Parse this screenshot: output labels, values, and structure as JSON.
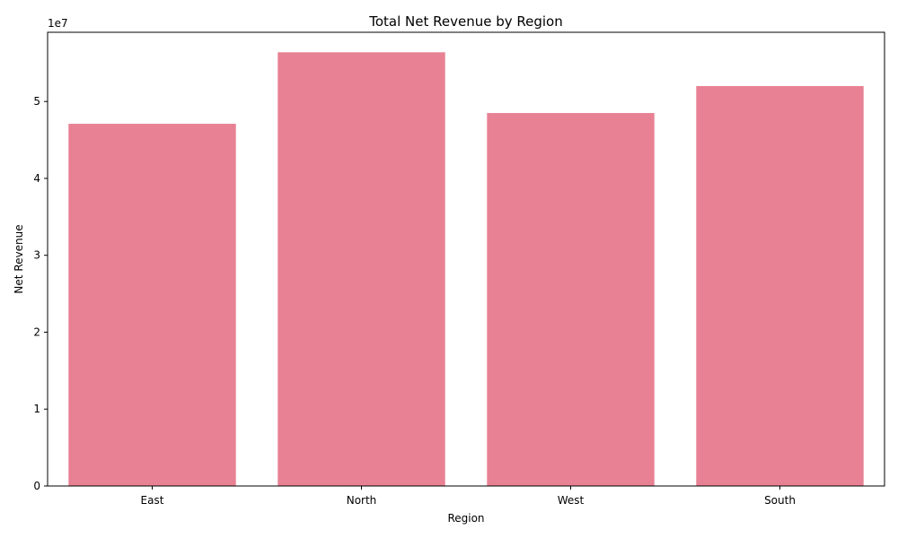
{
  "chart_data": {
    "type": "bar",
    "title": "Total Net Revenue by Region",
    "xlabel": "Region",
    "ylabel": "Net Revenue",
    "categories": [
      "East",
      "North",
      "West",
      "South"
    ],
    "values": [
      47100000,
      56400000,
      48500000,
      52000000
    ],
    "ylim": [
      0,
      59000000
    ],
    "yticks": [
      0,
      10000000,
      20000000,
      30000000,
      40000000,
      50000000
    ],
    "ytick_labels": [
      "0",
      "1",
      "2",
      "3",
      "4",
      "5"
    ],
    "y_offset_label": "1e7",
    "bar_color": "#e88193",
    "grid": false,
    "legend": "none"
  }
}
